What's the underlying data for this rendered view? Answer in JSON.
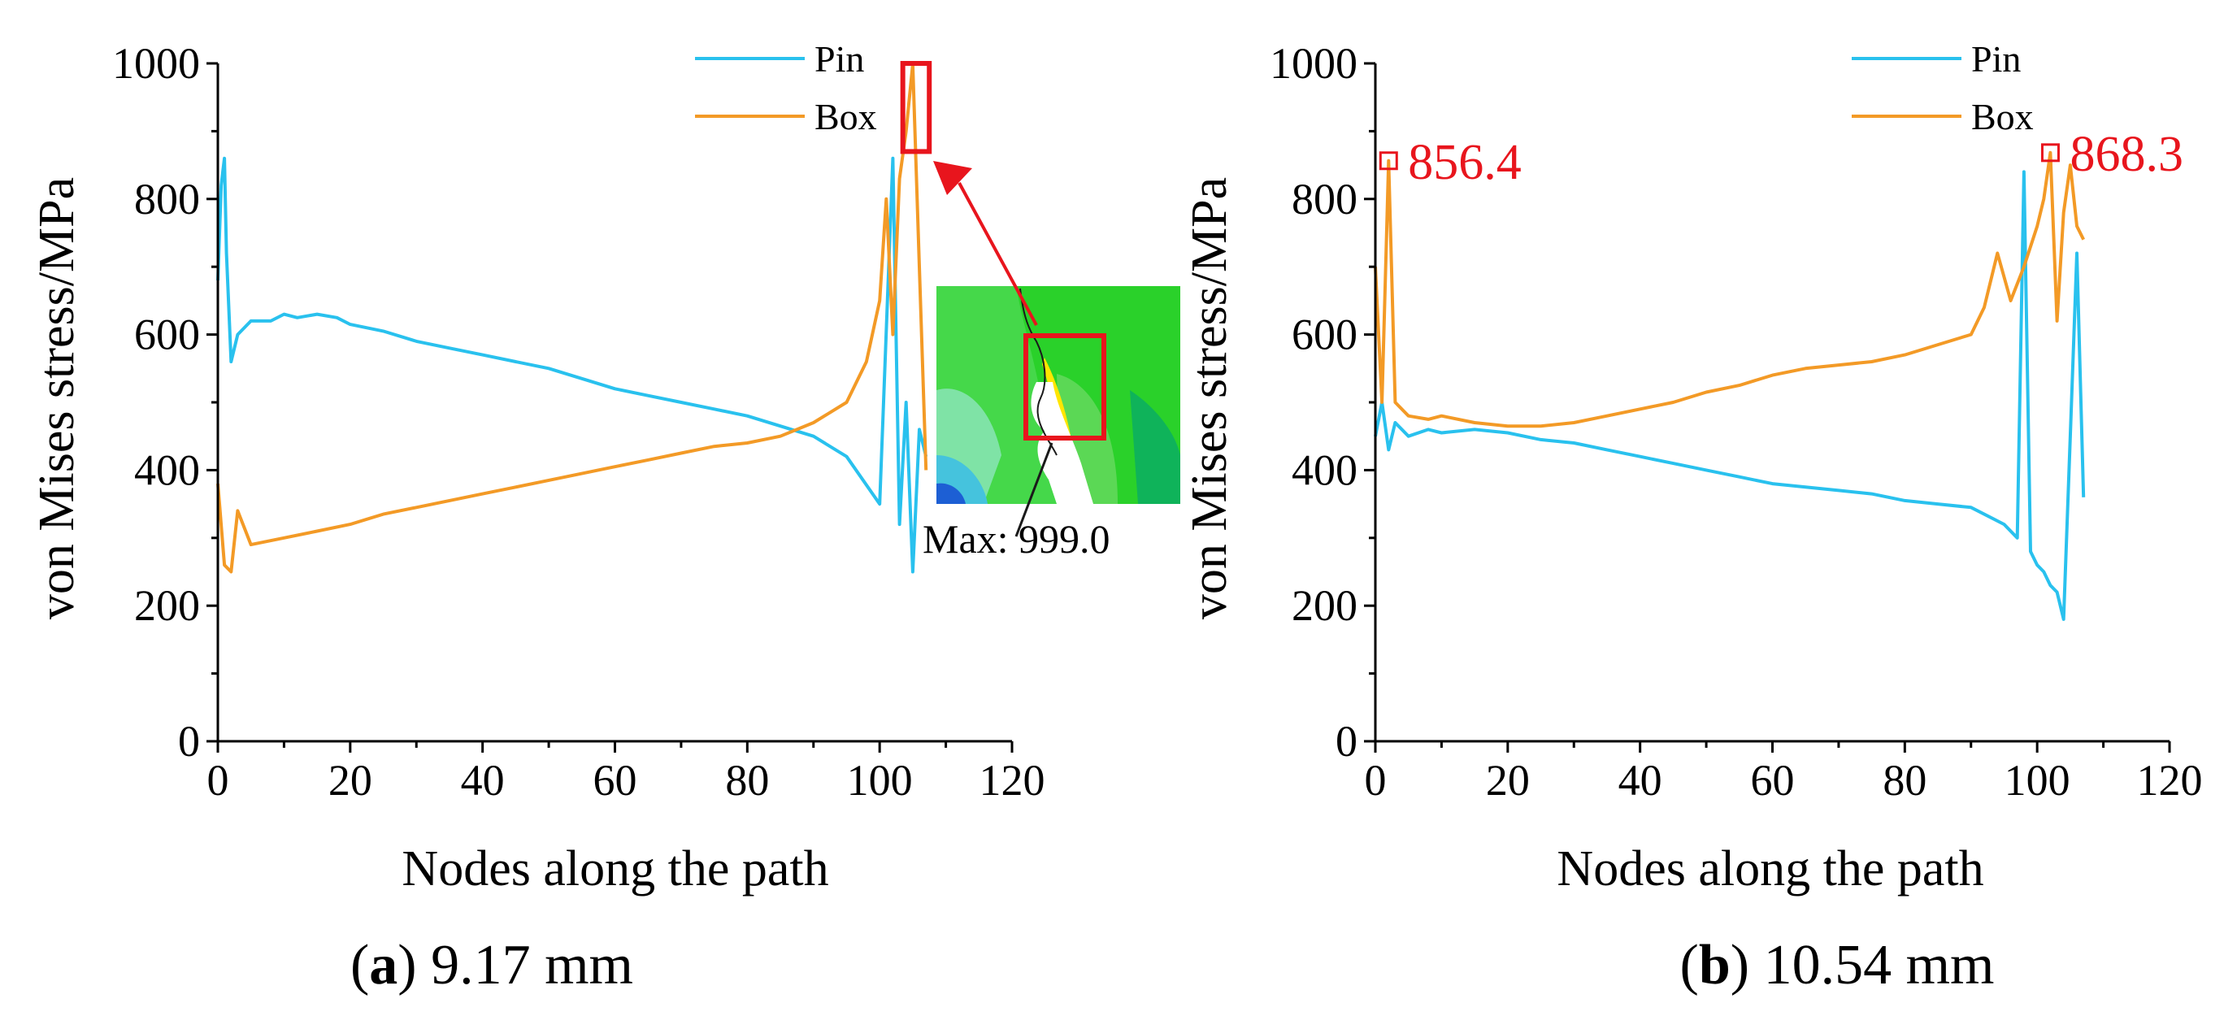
{
  "colors": {
    "pin": "#29c1ee",
    "box": "#f39a26",
    "highlight": "#e8151d",
    "axis": "#000000"
  },
  "chart_data": [
    {
      "type": "line",
      "caption_letter": "a",
      "caption_text": " 9.17 mm",
      "xlabel": "Nodes along the path",
      "ylabel": "von Mises stress/MPa",
      "xlim": [
        0,
        120
      ],
      "ylim": [
        0,
        1000
      ],
      "xticks": [
        "0",
        "20",
        "40",
        "60",
        "80",
        "100",
        "120"
      ],
      "yticks": [
        "0",
        "200",
        "400",
        "600",
        "800",
        "1000"
      ],
      "legend": [
        "Pin",
        "Box"
      ],
      "inset_label": "Max: 999.0",
      "highlight_region": {
        "x": [
          103.5,
          107.5
        ],
        "y": [
          870,
          1000
        ]
      },
      "series": [
        {
          "name": "Pin",
          "x": [
            0,
            0.5,
            1,
            1.3,
            2,
            3,
            5,
            8,
            10,
            12,
            15,
            18,
            20,
            25,
            30,
            35,
            40,
            45,
            50,
            55,
            60,
            65,
            70,
            75,
            80,
            85,
            90,
            95,
            100,
            102,
            103,
            104,
            105,
            106,
            107
          ],
          "values": [
            680,
            820,
            860,
            720,
            560,
            600,
            620,
            620,
            630,
            625,
            630,
            625,
            615,
            605,
            590,
            580,
            570,
            560,
            550,
            535,
            520,
            510,
            500,
            490,
            480,
            465,
            450,
            420,
            350,
            860,
            320,
            500,
            250,
            460,
            420
          ]
        },
        {
          "name": "Box",
          "x": [
            0,
            1,
            2,
            3,
            5,
            10,
            15,
            20,
            25,
            30,
            35,
            40,
            45,
            50,
            55,
            60,
            65,
            70,
            75,
            80,
            85,
            90,
            95,
            98,
            100,
            101,
            102,
            103,
            104,
            105,
            106,
            107
          ],
          "values": [
            380,
            260,
            250,
            340,
            290,
            300,
            310,
            320,
            335,
            345,
            355,
            365,
            375,
            385,
            395,
            405,
            415,
            425,
            435,
            440,
            450,
            470,
            500,
            560,
            650,
            800,
            600,
            830,
            900,
            999,
            700,
            400
          ]
        }
      ]
    },
    {
      "type": "line",
      "caption_letter": "b",
      "caption_text": " 10.54 mm",
      "xlabel": "Nodes along the path",
      "ylabel": "von Mises stress/MPa",
      "xlim": [
        0,
        120
      ],
      "ylim": [
        0,
        1000
      ],
      "xticks": [
        "0",
        "20",
        "40",
        "60",
        "80",
        "100",
        "120"
      ],
      "yticks": [
        "0",
        "200",
        "400",
        "600",
        "800",
        "1000"
      ],
      "legend": [
        "Pin",
        "Box"
      ],
      "annotations": [
        {
          "text": "856.4",
          "x": 2,
          "y": 856.4
        },
        {
          "text": "868.3",
          "x": 102,
          "y": 868.3
        }
      ],
      "series": [
        {
          "name": "Pin",
          "x": [
            0,
            1,
            2,
            3,
            5,
            8,
            10,
            15,
            20,
            25,
            30,
            35,
            40,
            45,
            50,
            55,
            60,
            65,
            70,
            75,
            80,
            85,
            90,
            95,
            97,
            98,
            99,
            100,
            101,
            102,
            103,
            104,
            105,
            106,
            107
          ],
          "values": [
            450,
            500,
            430,
            470,
            450,
            460,
            455,
            460,
            455,
            445,
            440,
            430,
            420,
            410,
            400,
            390,
            380,
            375,
            370,
            365,
            355,
            350,
            345,
            320,
            300,
            840,
            280,
            260,
            250,
            230,
            220,
            180,
            450,
            720,
            360
          ]
        },
        {
          "name": "Box",
          "x": [
            0,
            1,
            2,
            3,
            5,
            8,
            10,
            15,
            20,
            25,
            30,
            35,
            40,
            45,
            50,
            55,
            60,
            65,
            70,
            75,
            80,
            85,
            90,
            92,
            94,
            96,
            98,
            100,
            101,
            102,
            103,
            104,
            105,
            106,
            107
          ],
          "values": [
            700,
            500,
            856.4,
            500,
            480,
            475,
            480,
            470,
            465,
            465,
            470,
            480,
            490,
            500,
            515,
            525,
            540,
            550,
            555,
            560,
            570,
            585,
            600,
            640,
            720,
            650,
            700,
            760,
            800,
            868.3,
            620,
            780,
            850,
            760,
            740
          ]
        }
      ]
    }
  ]
}
